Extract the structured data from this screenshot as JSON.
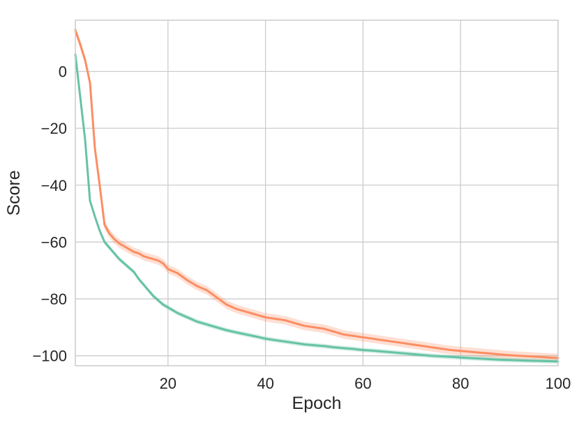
{
  "chart_data": {
    "type": "line",
    "title": "",
    "xlabel": "Epoch",
    "ylabel": "Score",
    "xlim": [
      1,
      100
    ],
    "ylim": [
      -103.5,
      18
    ],
    "xticks": [
      20,
      40,
      60,
      80,
      100
    ],
    "yticks": [
      0,
      -20,
      -40,
      -60,
      -80,
      -100
    ],
    "grid": true,
    "legend": "none",
    "series": [
      {
        "color": "#fc8d62",
        "band": 1.5,
        "x": [
          1,
          2,
          3,
          4,
          5,
          6,
          7,
          8,
          9,
          10,
          11,
          12,
          13,
          14,
          15,
          16,
          17,
          18,
          19,
          20,
          22,
          24,
          26,
          28,
          30,
          32,
          34,
          36,
          38,
          40,
          42,
          44,
          46,
          48,
          50,
          52,
          54,
          56,
          58,
          60,
          62,
          64,
          66,
          68,
          70,
          72,
          74,
          76,
          78,
          80,
          82,
          84,
          86,
          88,
          90,
          92,
          94,
          96,
          98,
          100
        ],
        "y": [
          14.5,
          9.5,
          4,
          -4,
          -27,
          -40,
          -54,
          -57,
          -59,
          -60.5,
          -61.5,
          -62.5,
          -63.5,
          -64,
          -65,
          -65.5,
          -66,
          -66.5,
          -67.5,
          -69.5,
          -71,
          -73.5,
          -75.5,
          -77,
          -79.5,
          -82,
          -83.5,
          -84.5,
          -85.5,
          -86.5,
          -87,
          -87.5,
          -88.5,
          -89.5,
          -90,
          -90.5,
          -91.5,
          -92.5,
          -93,
          -93.5,
          -94,
          -94.5,
          -95,
          -95.5,
          -96,
          -96.5,
          -97,
          -97.5,
          -98,
          -98.3,
          -98.6,
          -98.9,
          -99.2,
          -99.5,
          -99.8,
          -100,
          -100.2,
          -100.4,
          -100.6,
          -100.8
        ]
      },
      {
        "color": "#66c2a5",
        "band": 0.8,
        "x": [
          1,
          2,
          3,
          4,
          5,
          6,
          7,
          8,
          9,
          10,
          11,
          12,
          13,
          14,
          15,
          16,
          17,
          18,
          19,
          20,
          22,
          24,
          26,
          28,
          30,
          32,
          34,
          36,
          38,
          40,
          42,
          44,
          46,
          48,
          50,
          52,
          54,
          56,
          58,
          60,
          62,
          64,
          66,
          68,
          70,
          72,
          74,
          76,
          78,
          80,
          82,
          84,
          86,
          88,
          90,
          92,
          94,
          96,
          98,
          100
        ],
        "y": [
          6,
          -9,
          -24,
          -45.5,
          -51,
          -56,
          -60,
          -62,
          -64,
          -66,
          -67.5,
          -69,
          -70.5,
          -73,
          -75,
          -77,
          -79,
          -80.5,
          -82,
          -83,
          -85,
          -86.5,
          -88,
          -89,
          -90,
          -91,
          -91.8,
          -92.5,
          -93.2,
          -94,
          -94.5,
          -95,
          -95.5,
          -96,
          -96.3,
          -96.6,
          -97,
          -97.3,
          -97.6,
          -98,
          -98.2,
          -98.5,
          -98.8,
          -99.1,
          -99.4,
          -99.7,
          -100,
          -100.2,
          -100.4,
          -100.6,
          -100.8,
          -101,
          -101.2,
          -101.4,
          -101.5,
          -101.6,
          -101.7,
          -101.8,
          -101.9,
          -102
        ]
      }
    ]
  }
}
